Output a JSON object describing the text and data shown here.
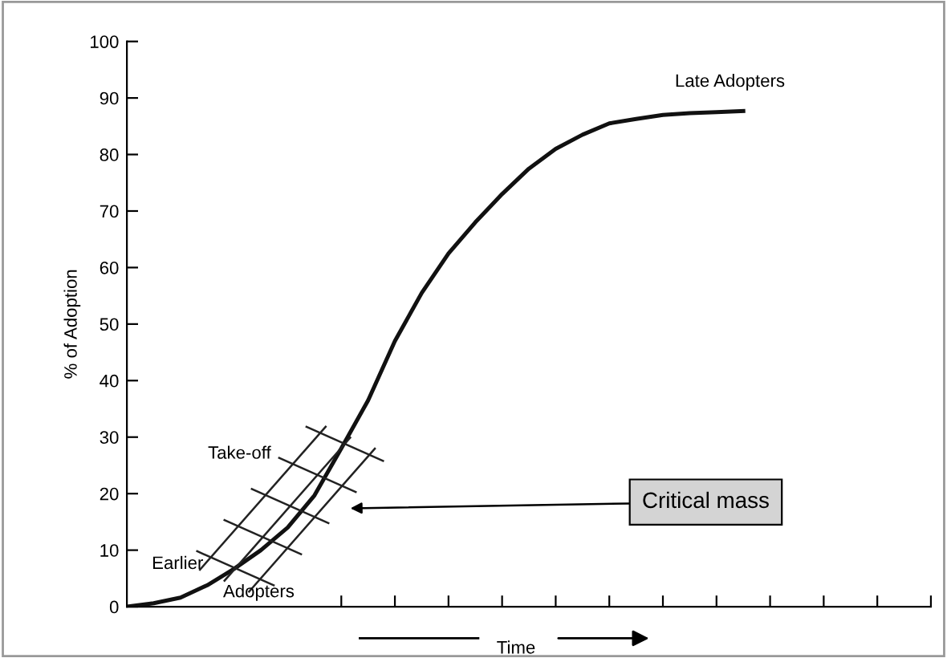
{
  "chart_data": {
    "type": "line",
    "ylabel": "% of Adoption",
    "xlabel": "Time",
    "categories": [
      null,
      null,
      null,
      null,
      null,
      null,
      null,
      null,
      null,
      null,
      null,
      null,
      null,
      null,
      null,
      null,
      null,
      null,
      null,
      null,
      null,
      null,
      null,
      null,
      null,
      null,
      null,
      null,
      null,
      null,
      null
    ],
    "series": [
      {
        "color": "#111111",
        "values": [
          0,
          0.6,
          1.6,
          3.8,
          6.7,
          10,
          14,
          19.7,
          28,
          36.5,
          47,
          55.5,
          62.5,
          68,
          73,
          77.5,
          81,
          83.5,
          85.5,
          86.3,
          87,
          87.3,
          87.5,
          87.7,
          null,
          null,
          null,
          null,
          null,
          null,
          null
        ]
      }
    ],
    "ylim": [
      0,
      100
    ],
    "yticks": [
      0,
      10,
      20,
      30,
      40,
      50,
      60,
      70,
      80,
      90,
      100
    ],
    "tick_labels": "y",
    "grid": false,
    "legend": false,
    "marker": "none",
    "line_style": "solid",
    "annotations": [
      "Late Adopters",
      "Take-off",
      "Earlier",
      "Adopters",
      "Critical mass"
    ]
  }
}
